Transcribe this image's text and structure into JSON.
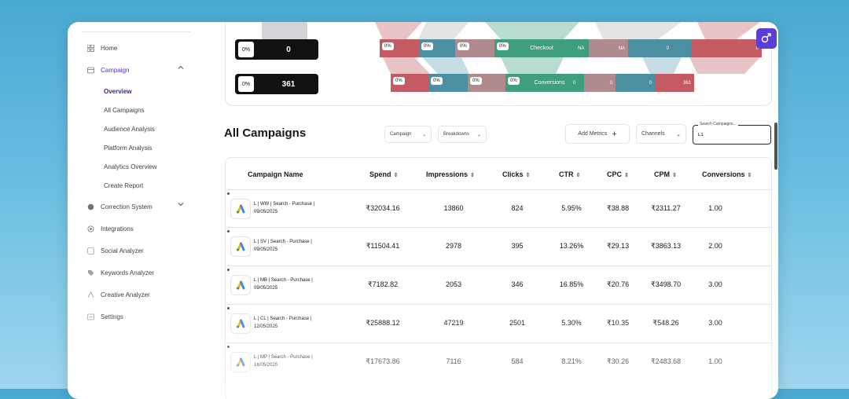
{
  "sidebar": {
    "items": [
      {
        "label": "Home",
        "icon": "grid-icon"
      },
      {
        "label": "Campaign",
        "icon": "campaign-icon"
      },
      {
        "label": "Correction System",
        "icon": "correction-icon"
      },
      {
        "label": "Integrations",
        "icon": "integrations-icon"
      },
      {
        "label": "Social Analyzer",
        "icon": "social-icon"
      },
      {
        "label": "Keywords Analyzer",
        "icon": "tag-icon"
      },
      {
        "label": "Creative Analyzer",
        "icon": "creative-icon"
      },
      {
        "label": "Settings",
        "icon": "settings-icon"
      }
    ],
    "campaign_sub": [
      "Overview",
      "All Campaigns",
      "Audience Analysis",
      "Platform Analysis",
      "Analytics Overview",
      "Create Report"
    ]
  },
  "funnel": {
    "rows": [
      {
        "pct": "0%",
        "value": "0"
      },
      {
        "pct": "0%",
        "value": "361"
      }
    ],
    "checkout": {
      "label": "Checkout",
      "chips": [
        "0%",
        "0%",
        "0%",
        "0%"
      ],
      "values": [
        "NA",
        "NA",
        "0",
        "0"
      ]
    },
    "conversions": {
      "label": "Conversions",
      "chips": [
        "0%",
        "0%",
        "0%",
        "0%"
      ],
      "values": [
        "0",
        "0",
        "0",
        "361"
      ]
    }
  },
  "section_title": "All Campaigns",
  "controls": {
    "campaign_select": "Campaign",
    "breakdowns_select": "Breakdowns",
    "add_metrics": "Add Metrics",
    "channels_select": "Channels",
    "search_label": "Search Campaigns...",
    "search_value": "L1"
  },
  "table": {
    "headers": [
      "Campaign Name",
      "Spend",
      "Impressions",
      "Clicks",
      "CTR",
      "CPC",
      "CPM",
      "Conversions"
    ],
    "rows": [
      {
        "name": "L | WW | Search - Purchase | 09/05/2025",
        "spend": "₹32034.16",
        "impressions": "13860",
        "clicks": "824",
        "ctr": "5.95%",
        "cpc": "₹38.88",
        "cpm": "₹2311.27",
        "conversions": "1.00"
      },
      {
        "name": "L | SV | Search - Purchase | 09/05/2025",
        "spend": "₹11504.41",
        "impressions": "2978",
        "clicks": "395",
        "ctr": "13.26%",
        "cpc": "₹29.13",
        "cpm": "₹3863.13",
        "conversions": "2.00"
      },
      {
        "name": "L | MB | Search - Purchase | 09/05/2025",
        "spend": "₹7182.82",
        "impressions": "2053",
        "clicks": "346",
        "ctr": "16.85%",
        "cpc": "₹20.76",
        "cpm": "₹3498.70",
        "conversions": "3.00"
      },
      {
        "name": "L | CL | Search - Purchase | 12/05/2025",
        "spend": "₹25888.12",
        "impressions": "47219",
        "clicks": "2501",
        "ctr": "5.30%",
        "cpc": "₹10.35",
        "cpm": "₹548.26",
        "conversions": "3.00"
      },
      {
        "name": "L | MP | Search - Purchase | 16/05/2025",
        "spend": "₹17673.86",
        "impressions": "7116",
        "clicks": "584",
        "ctr": "8.21%",
        "cpc": "₹30.26",
        "cpm": "₹2483.68",
        "conversions": "1.00"
      }
    ]
  },
  "colors": {
    "accent": "#5b3fd4",
    "green": "#3f9e7e",
    "teal": "#4c8fa3",
    "red": "#c45b62",
    "mauve": "#b08a8c"
  }
}
